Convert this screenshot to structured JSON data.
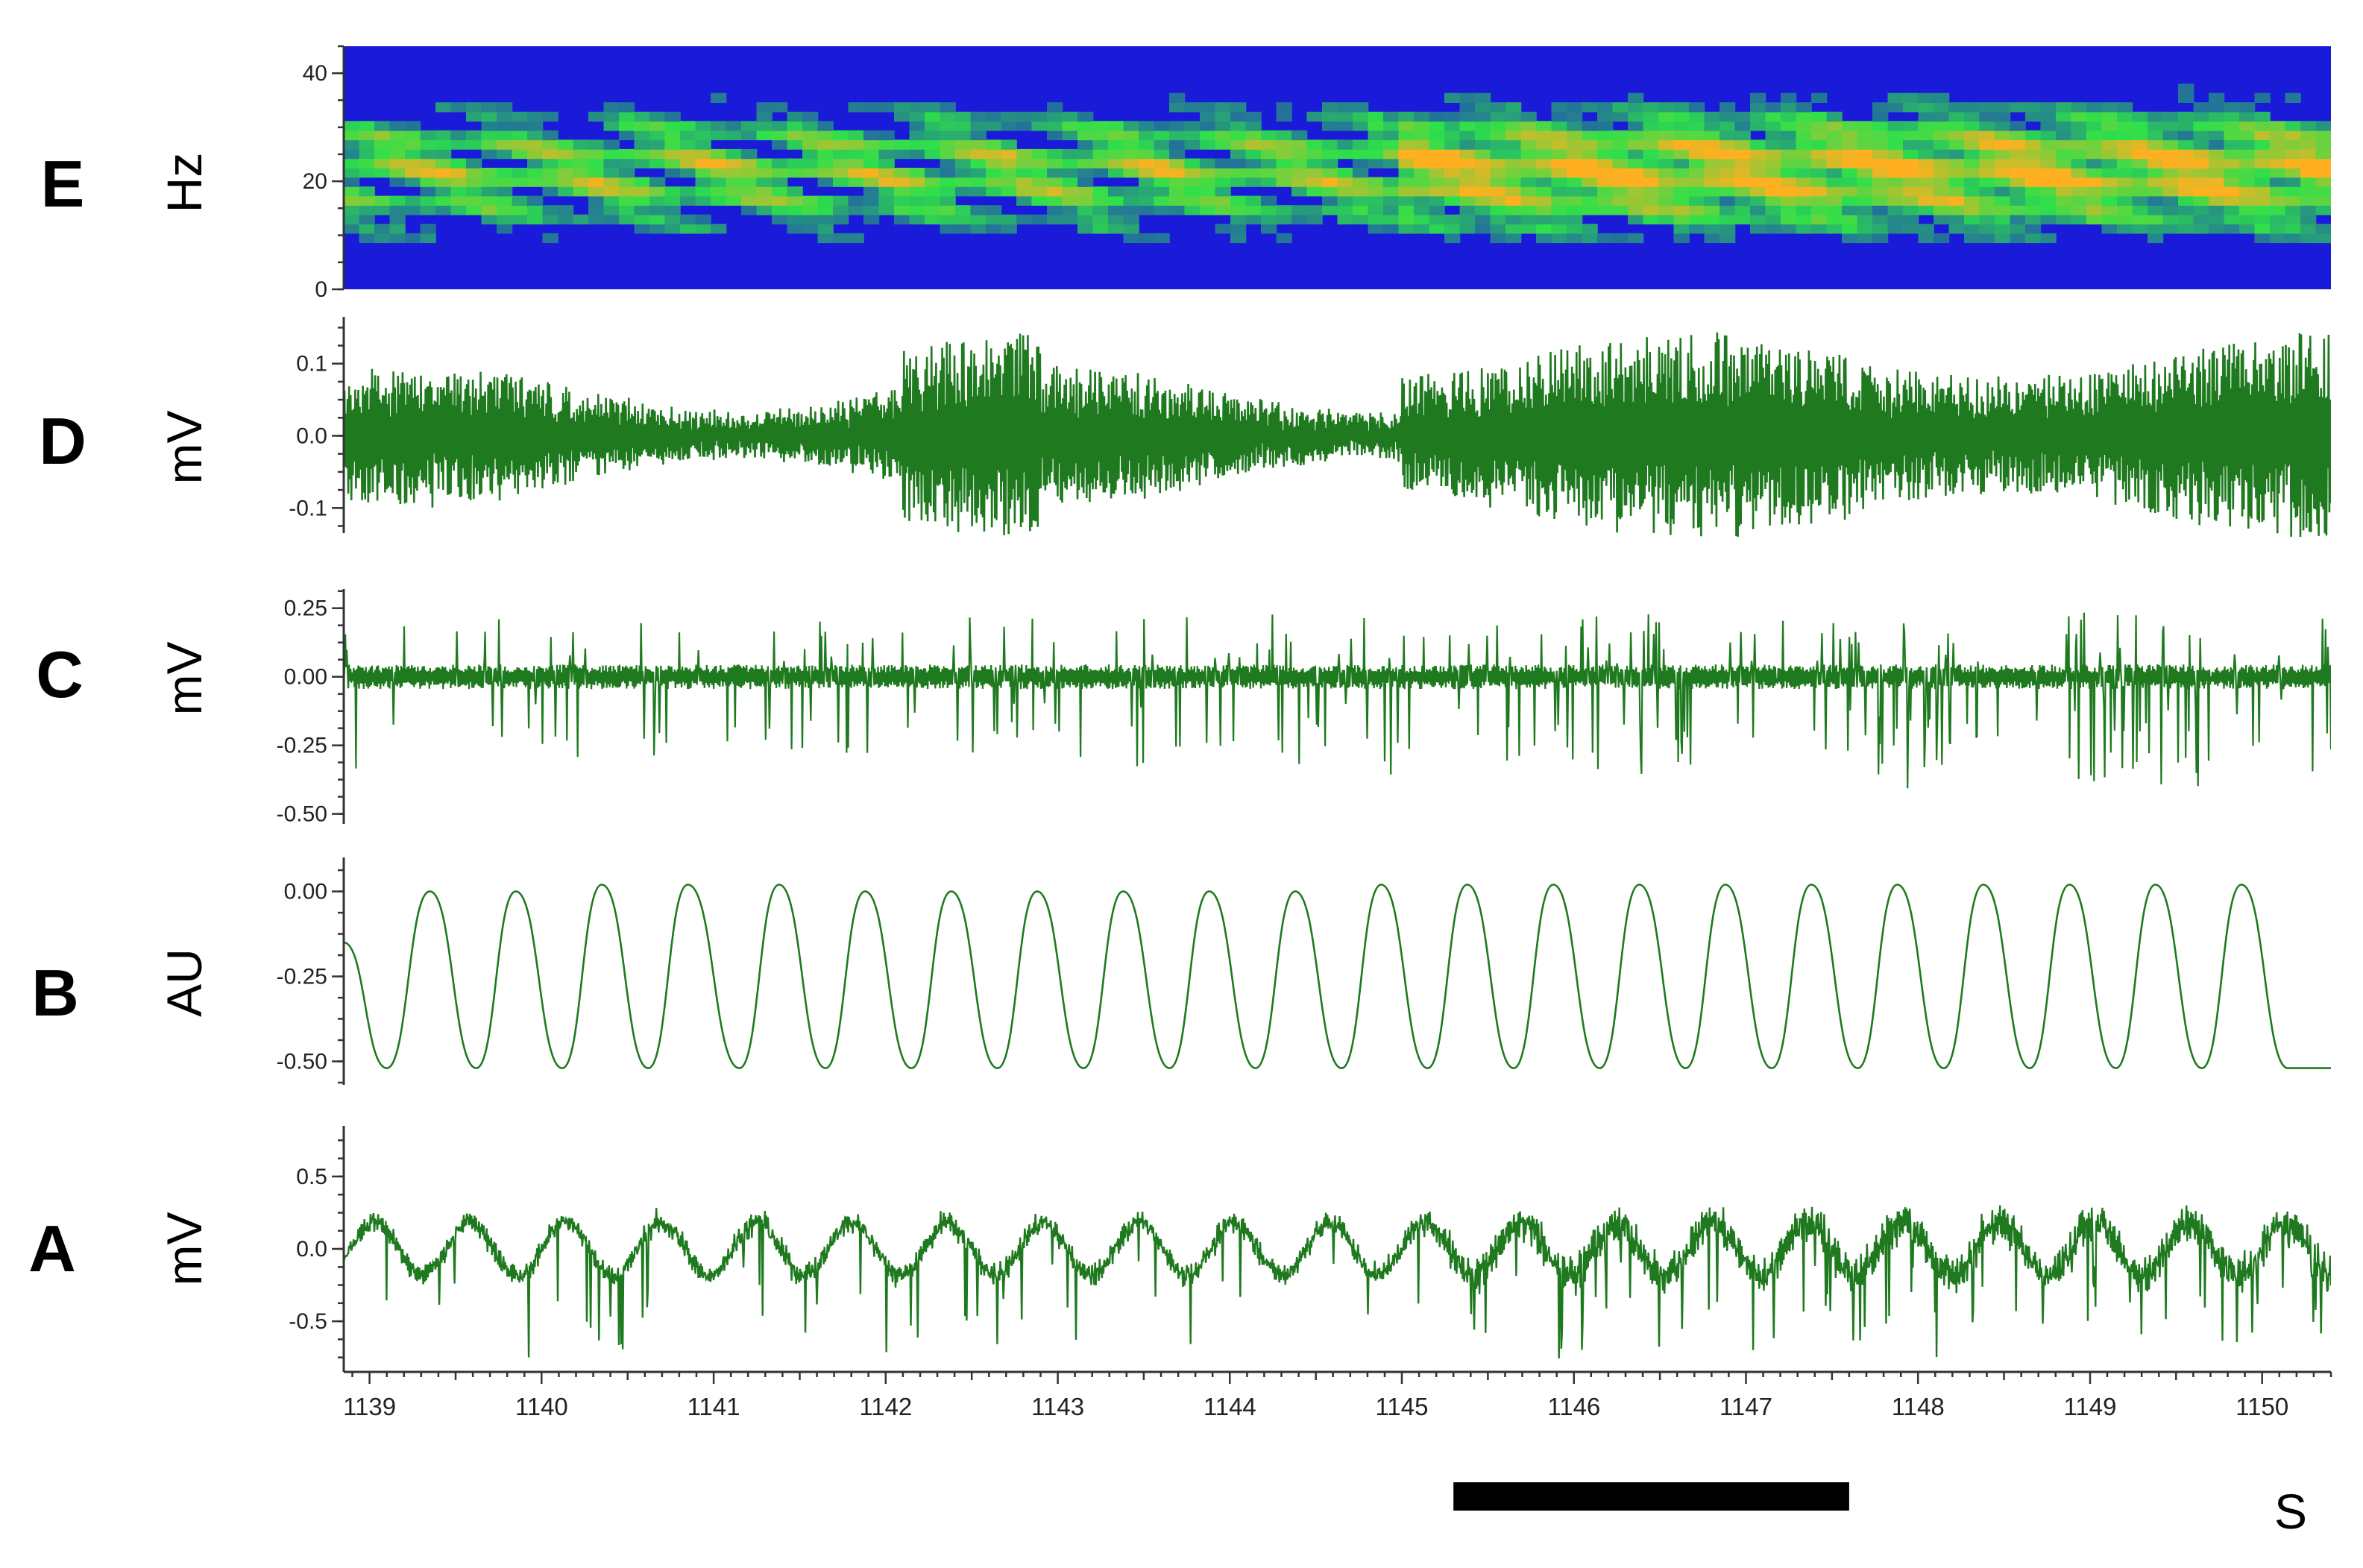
{
  "colors": {
    "trace": "#1f7a1f",
    "scale_bar": "#000000",
    "spectrogram_low": "#1a1ad9",
    "spectrogram_mid": "#2ee04a",
    "spectrogram_high": "#ffb020"
  },
  "chart_data": [
    {
      "panel": "E",
      "type": "heatmap",
      "ylabel": "Hz",
      "ylim": [
        0,
        45
      ],
      "yticks": [
        "40",
        "20",
        "0"
      ],
      "ytick_values": [
        40,
        20,
        0
      ],
      "xlim": [
        1138.85,
        1150.4
      ],
      "colormap": "jet"
    },
    {
      "panel": "D",
      "type": "line",
      "ylabel": "mV",
      "ylim": [
        -0.14,
        0.17
      ],
      "yticks": [
        "0.1",
        "0.0",
        "-0.1"
      ],
      "ytick_values": [
        0.1,
        0.0,
        -0.1
      ],
      "xlim": [
        1138.85,
        1150.4
      ],
      "series": [
        {
          "values_summary": "high-frequency oscillation, amplitude ~0.05–0.15 mV"
        }
      ]
    },
    {
      "panel": "C",
      "type": "line",
      "ylabel": "mV",
      "ylim": [
        -0.55,
        0.32
      ],
      "yticks": [
        "0.25",
        "0.00",
        "-0.25",
        "-0.50"
      ],
      "ytick_values": [
        0.25,
        0.0,
        -0.25,
        -0.5
      ],
      "xlim": [
        1138.85,
        1150.4
      ],
      "series": [
        {
          "values_summary": "noise with spikes, bursts after ~1145 s"
        }
      ]
    },
    {
      "panel": "B",
      "type": "line",
      "ylabel": "AU",
      "ylim": [
        -0.58,
        0.1
      ],
      "yticks": [
        "0.00",
        "-0.25",
        "-0.50"
      ],
      "ytick_values": [
        0.0,
        -0.25,
        -0.5
      ],
      "xlim": [
        1138.85,
        1150.4
      ],
      "series": [
        {
          "x": [
            1138.85,
            1139.1,
            1139.35,
            1139.62,
            1139.85,
            1140.12,
            1140.35,
            1140.62,
            1140.85,
            1141.15,
            1141.38,
            1141.65,
            1141.88,
            1142.15,
            1142.38,
            1142.65,
            1142.88,
            1143.15,
            1143.38,
            1143.65,
            1143.88,
            1144.15,
            1144.38,
            1144.65,
            1144.88,
            1145.15,
            1145.38,
            1145.65,
            1145.88,
            1146.15,
            1146.38,
            1146.65,
            1146.88,
            1147.15,
            1147.38,
            1147.65,
            1147.88,
            1148.15,
            1148.38,
            1148.65,
            1148.88,
            1149.15,
            1149.38,
            1149.65,
            1149.88,
            1150.15,
            1150.4
          ],
          "y": [
            -0.15,
            -0.52,
            0.0,
            -0.52,
            0.0,
            -0.52,
            0.02,
            -0.52,
            0.02,
            -0.52,
            0.02,
            -0.52,
            0.0,
            -0.52,
            0.0,
            -0.52,
            0.0,
            -0.52,
            0.0,
            -0.52,
            0.0,
            -0.52,
            0.0,
            -0.52,
            0.02,
            -0.52,
            0.02,
            -0.52,
            0.02,
            -0.52,
            0.02,
            -0.52,
            0.02,
            -0.52,
            0.02,
            -0.52,
            0.02,
            -0.52,
            0.02,
            -0.52,
            0.02,
            -0.52,
            0.02,
            -0.52,
            0.02,
            -0.52,
            -0.52
          ]
        }
      ]
    },
    {
      "panel": "A",
      "type": "line",
      "ylabel": "mV",
      "ylim": [
        -0.85,
        0.85
      ],
      "yticks": [
        "0.5",
        "0.0",
        "-0.5"
      ],
      "ytick_values": [
        0.5,
        0.0,
        -0.5
      ],
      "xlim": [
        1138.85,
        1150.4
      ],
      "series": [
        {
          "values_summary": "slow oscillation ~±0.3 mV with fast spikes down to ~-0.8 mV"
        }
      ]
    }
  ],
  "x_axis": {
    "tick_labels": [
      "1139",
      "1140",
      "1141",
      "1142",
      "1143",
      "1144",
      "1145",
      "1146",
      "1147",
      "1148",
      "1149",
      "1150"
    ],
    "tick_values": [
      1139,
      1140,
      1141,
      1142,
      1143,
      1144,
      1145,
      1146,
      1147,
      1148,
      1149,
      1150
    ],
    "unit": "S"
  },
  "scale_bar": {
    "from": 1145.3,
    "to": 1147.6
  }
}
